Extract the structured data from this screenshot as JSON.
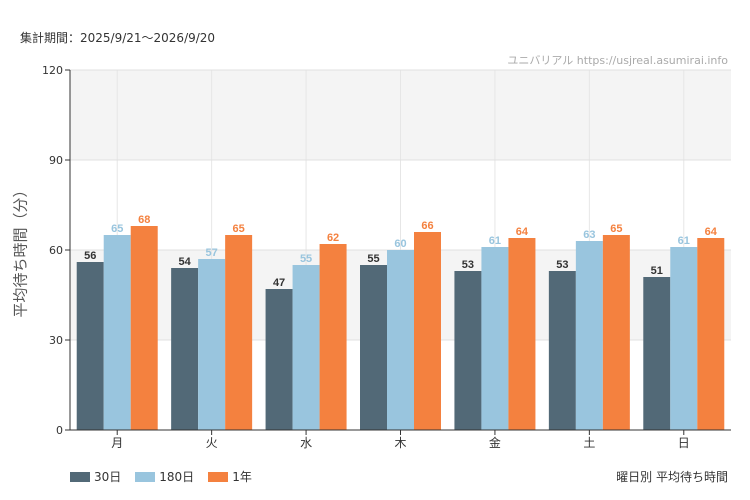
{
  "header": {
    "period": "集計期間：2025/9/21〜2026/9/20",
    "credit": "ユニバリアル  https://usjreal.asumirai.info"
  },
  "footer": {
    "subtitle": "曜日別 平均待ち時間"
  },
  "chart_data": {
    "type": "bar",
    "ylabel": "平均待ち時間（分）",
    "xlabel": "",
    "ylim": [
      0,
      120
    ],
    "yticks": [
      0,
      30,
      60,
      90,
      120
    ],
    "grid": true,
    "legend_position": "bottom-left",
    "categories": [
      "月",
      "火",
      "水",
      "木",
      "金",
      "土",
      "日"
    ],
    "series": [
      {
        "name": "30日",
        "color": "#526977",
        "values": [
          56,
          54,
          47,
          55,
          53,
          53,
          51
        ]
      },
      {
        "name": "180日",
        "color": "#99c5de",
        "values": [
          65,
          57,
          55,
          60,
          61,
          63,
          61
        ]
      },
      {
        "name": "1年",
        "color": "#f4813f",
        "values": [
          68,
          65,
          62,
          66,
          64,
          65,
          64
        ]
      }
    ]
  }
}
